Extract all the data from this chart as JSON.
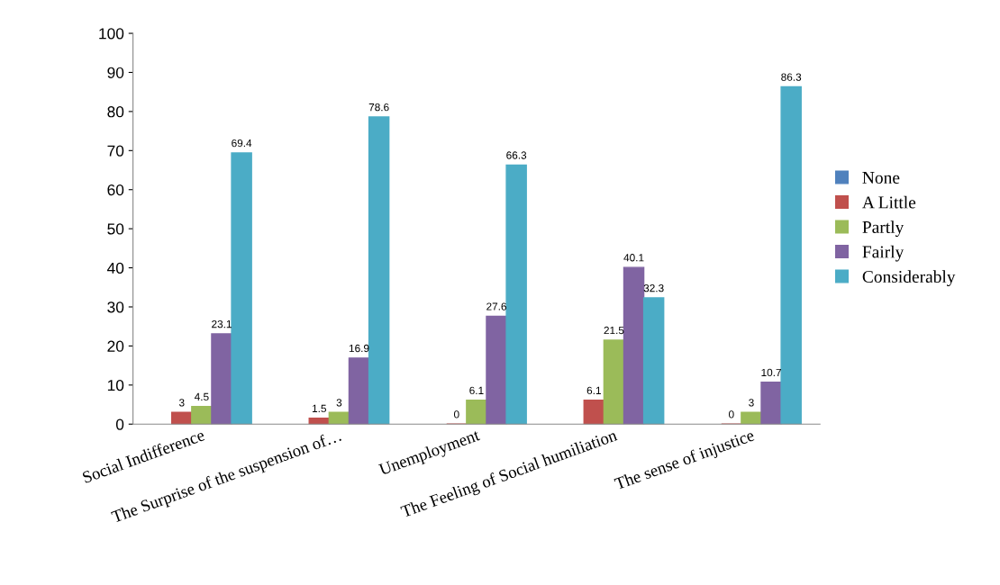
{
  "chart_data": {
    "type": "bar",
    "categories": [
      "Social Indifference",
      "The Surprise of the suspension of…",
      "Unemployment",
      "The Feeling of Social humiliation",
      "The sense of injustice"
    ],
    "series": [
      {
        "name": "None",
        "color": "#4f81bd",
        "values": [
          null,
          null,
          null,
          null,
          null
        ],
        "value_labels": [
          null,
          null,
          null,
          null,
          null
        ]
      },
      {
        "name": "A Little",
        "color": "#c0504d",
        "values": [
          3,
          1.5,
          0,
          6.1,
          0
        ],
        "value_labels": [
          "3",
          "1.5",
          "0",
          "6.1",
          "0"
        ]
      },
      {
        "name": "Partly",
        "color": "#9bbb59",
        "values": [
          4.5,
          3,
          6.1,
          21.5,
          3
        ],
        "value_labels": [
          "4.5",
          "3",
          "6.1",
          "21.5",
          "3"
        ]
      },
      {
        "name": "Fairly",
        "color": "#8064a2",
        "values": [
          23.1,
          16.9,
          27.6,
          40.1,
          10.7
        ],
        "value_labels": [
          "23.1",
          "16.9",
          "27.6",
          "40.1",
          "10.7"
        ]
      },
      {
        "name": "Considerably",
        "color": "#4bacc6",
        "values": [
          69.4,
          78.6,
          66.3,
          32.3,
          86.3
        ],
        "value_labels": [
          "69.4",
          "78.6",
          "66.3",
          "32.3",
          "86.3"
        ]
      }
    ],
    "ylim": [
      0,
      100
    ],
    "yticks": [
      0,
      10,
      20,
      30,
      40,
      50,
      60,
      70,
      80,
      90,
      100
    ],
    "grid": false,
    "legend": "right"
  }
}
